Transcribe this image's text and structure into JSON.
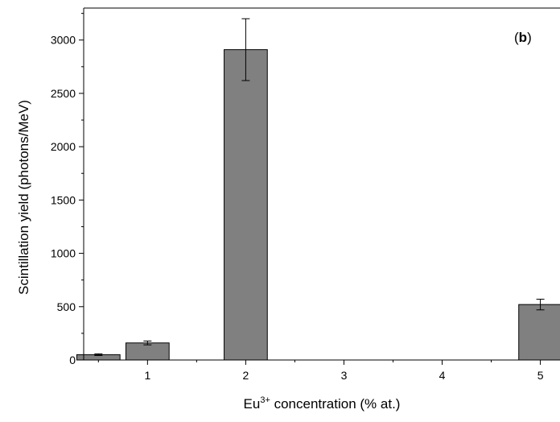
{
  "chart_data": {
    "type": "bar",
    "panel_label_open": "(",
    "panel_label_letter": "b",
    "panel_label_close": ")",
    "xlabel_prefix": "Eu",
    "xlabel_sup": "3+",
    "xlabel_suffix": " concentration (% at.)",
    "ylabel": "Scintillation yield (photons/MeV)",
    "xlim": [
      0.35,
      5.2
    ],
    "ylim": [
      0,
      3300
    ],
    "x_ticks": [
      1,
      2,
      3,
      4,
      5
    ],
    "y_ticks": [
      0,
      500,
      1000,
      1500,
      2000,
      2500,
      3000
    ],
    "bar_width": 0.44,
    "bar_color": "#808080",
    "bars": [
      {
        "x": 0.5,
        "value": 50,
        "error": 8
      },
      {
        "x": 1.0,
        "value": 160,
        "error": 18
      },
      {
        "x": 1.5,
        "value": 0,
        "error": 0
      },
      {
        "x": 2.0,
        "value": 2910,
        "error": 290
      },
      {
        "x": 2.5,
        "value": 0,
        "error": 0
      },
      {
        "x": 3.0,
        "value": 0,
        "error": 0
      },
      {
        "x": 3.5,
        "value": 0,
        "error": 0
      },
      {
        "x": 4.0,
        "value": 0,
        "error": 0
      },
      {
        "x": 4.5,
        "value": 0,
        "error": 0
      },
      {
        "x": 5.0,
        "value": 520,
        "error": 50
      }
    ]
  }
}
